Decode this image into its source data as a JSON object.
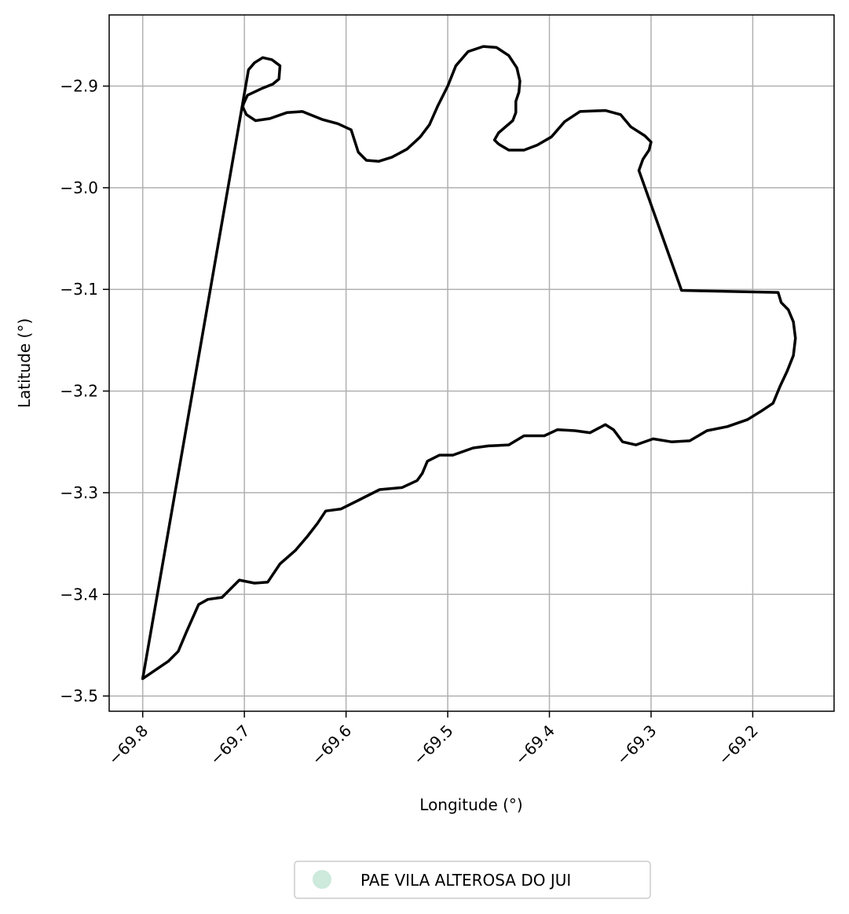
{
  "chart_data": {
    "type": "map",
    "title": "",
    "xlabel": "Longitude (°)",
    "ylabel": "Latitude (°)",
    "xlim": [
      -69.833,
      -69.12
    ],
    "ylim": [
      -3.515,
      -2.83
    ],
    "grid": true,
    "x_ticks": [
      -69.8,
      -69.7,
      -69.6,
      -69.5,
      -69.4,
      -69.3,
      -69.2
    ],
    "x_tick_labels": [
      "−69.8",
      "−69.7",
      "−69.6",
      "−69.5",
      "−69.4",
      "−69.3",
      "−69.2"
    ],
    "y_ticks": [
      -2.9,
      -3.0,
      -3.1,
      -3.2,
      -3.3,
      -3.4,
      -3.5
    ],
    "y_tick_labels": [
      "−2.9",
      "−3.0",
      "−3.1",
      "−3.2",
      "−3.3",
      "−3.4",
      "−3.5"
    ],
    "legend": {
      "placement": "bottom-center, below axes",
      "entries": [
        {
          "label": "PAE VILA ALTEROSA DO JUI",
          "color": "#cdeadc",
          "marker": "circle"
        }
      ]
    },
    "boundary_color": "#000000",
    "boundary": [
      [
        -69.8,
        -3.483
      ],
      [
        -69.775,
        -3.466
      ],
      [
        -69.765,
        -3.456
      ],
      [
        -69.757,
        -3.437
      ],
      [
        -69.745,
        -3.41
      ],
      [
        -69.736,
        -3.405
      ],
      [
        -69.722,
        -3.403
      ],
      [
        -69.705,
        -3.386
      ],
      [
        -69.69,
        -3.389
      ],
      [
        -69.677,
        -3.388
      ],
      [
        -69.665,
        -3.37
      ],
      [
        -69.65,
        -3.357
      ],
      [
        -69.638,
        -3.343
      ],
      [
        -69.628,
        -3.33
      ],
      [
        -69.62,
        -3.318
      ],
      [
        -69.605,
        -3.316
      ],
      [
        -69.587,
        -3.307
      ],
      [
        -69.567,
        -3.297
      ],
      [
        -69.545,
        -3.295
      ],
      [
        -69.53,
        -3.288
      ],
      [
        -69.525,
        -3.281
      ],
      [
        -69.52,
        -3.269
      ],
      [
        -69.508,
        -3.263
      ],
      [
        -69.495,
        -3.263
      ],
      [
        -69.475,
        -3.256
      ],
      [
        -69.46,
        -3.254
      ],
      [
        -69.44,
        -3.253
      ],
      [
        -69.425,
        -3.244
      ],
      [
        -69.405,
        -3.244
      ],
      [
        -69.392,
        -3.238
      ],
      [
        -69.375,
        -3.239
      ],
      [
        -69.36,
        -3.241
      ],
      [
        -69.345,
        -3.233
      ],
      [
        -69.337,
        -3.238
      ],
      [
        -69.328,
        -3.25
      ],
      [
        -69.315,
        -3.253
      ],
      [
        -69.298,
        -3.247
      ],
      [
        -69.28,
        -3.25
      ],
      [
        -69.262,
        -3.249
      ],
      [
        -69.245,
        -3.239
      ],
      [
        -69.225,
        -3.235
      ],
      [
        -69.205,
        -3.228
      ],
      [
        -69.192,
        -3.22
      ],
      [
        -69.18,
        -3.212
      ],
      [
        -69.173,
        -3.195
      ],
      [
        -69.166,
        -3.18
      ],
      [
        -69.16,
        -3.165
      ],
      [
        -69.158,
        -3.148
      ],
      [
        -69.16,
        -3.132
      ],
      [
        -69.165,
        -3.12
      ],
      [
        -69.172,
        -3.113
      ],
      [
        -69.175,
        -3.103
      ],
      [
        -69.27,
        -3.101
      ],
      [
        -69.312,
        -2.983
      ],
      [
        -69.308,
        -2.972
      ],
      [
        -69.302,
        -2.963
      ],
      [
        -69.3,
        -2.955
      ],
      [
        -69.306,
        -2.949
      ],
      [
        -69.32,
        -2.94
      ],
      [
        -69.33,
        -2.928
      ],
      [
        -69.345,
        -2.924
      ],
      [
        -69.37,
        -2.925
      ],
      [
        -69.385,
        -2.935
      ],
      [
        -69.398,
        -2.95
      ],
      [
        -69.412,
        -2.958
      ],
      [
        -69.425,
        -2.963
      ],
      [
        -69.44,
        -2.963
      ],
      [
        -69.45,
        -2.957
      ],
      [
        -69.454,
        -2.953
      ],
      [
        -69.45,
        -2.946
      ],
      [
        -69.436,
        -2.934
      ],
      [
        -69.433,
        -2.926
      ],
      [
        -69.433,
        -2.915
      ],
      [
        -69.43,
        -2.906
      ],
      [
        -69.429,
        -2.895
      ],
      [
        -69.432,
        -2.882
      ],
      [
        -69.44,
        -2.87
      ],
      [
        -69.452,
        -2.862
      ],
      [
        -69.465,
        -2.861
      ],
      [
        -69.48,
        -2.866
      ],
      [
        -69.492,
        -2.88
      ],
      [
        -69.5,
        -2.9
      ],
      [
        -69.51,
        -2.92
      ],
      [
        -69.518,
        -2.938
      ],
      [
        -69.527,
        -2.95
      ],
      [
        -69.54,
        -2.962
      ],
      [
        -69.555,
        -2.97
      ],
      [
        -69.568,
        -2.974
      ],
      [
        -69.58,
        -2.973
      ],
      [
        -69.588,
        -2.965
      ],
      [
        -69.595,
        -2.943
      ],
      [
        -69.608,
        -2.937
      ],
      [
        -69.623,
        -2.933
      ],
      [
        -69.643,
        -2.925
      ],
      [
        -69.658,
        -2.926
      ],
      [
        -69.675,
        -2.932
      ],
      [
        -69.689,
        -2.934
      ],
      [
        -69.698,
        -2.928
      ],
      [
        -69.702,
        -2.92
      ],
      [
        -69.697,
        -2.909
      ],
      [
        -69.682,
        -2.902
      ],
      [
        -69.672,
        -2.898
      ],
      [
        -69.666,
        -2.893
      ],
      [
        -69.665,
        -2.88
      ],
      [
        -69.673,
        -2.874
      ],
      [
        -69.682,
        -2.872
      ],
      [
        -69.69,
        -2.877
      ],
      [
        -69.696,
        -2.884
      ],
      [
        -69.8,
        -3.483
      ]
    ]
  }
}
